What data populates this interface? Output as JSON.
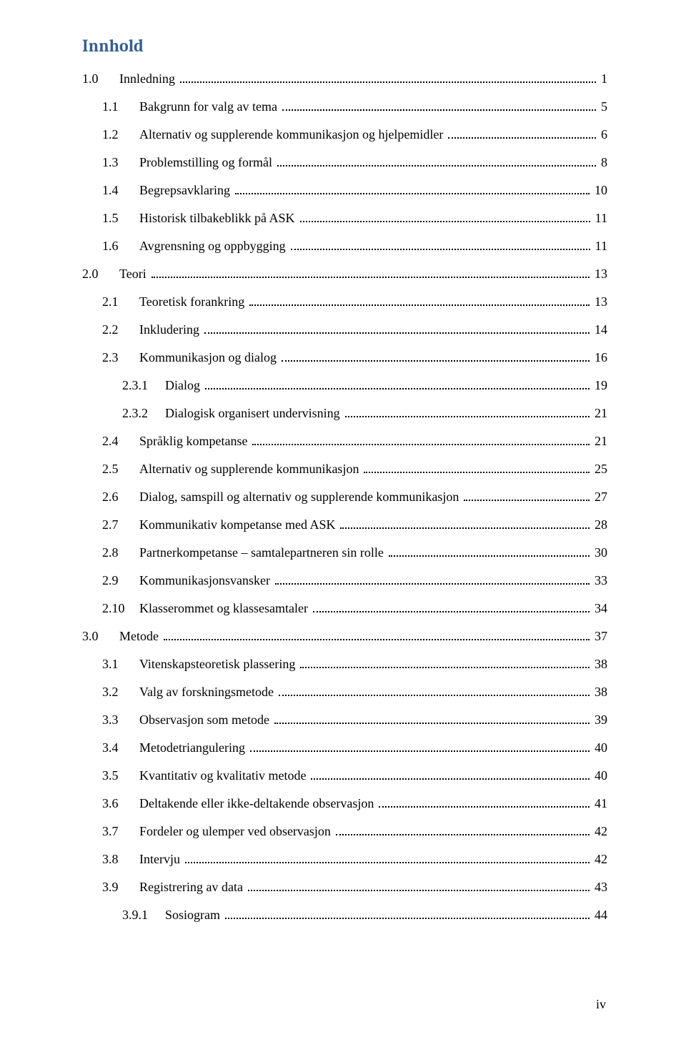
{
  "title": "Innhold",
  "page_label": "iv",
  "colors": {
    "title": "#365f91",
    "text": "#000000",
    "background": "#ffffff"
  },
  "typography": {
    "title_fontsize_pt": 18,
    "body_fontsize_pt": 13,
    "title_font": "Cambria",
    "body_font": "Times New Roman"
  },
  "toc": [
    {
      "level": 1,
      "num": "1.0",
      "text": "Innledning",
      "page": "1"
    },
    {
      "level": 2,
      "num": "1.1",
      "text": "Bakgrunn for valg av tema",
      "page": "5"
    },
    {
      "level": 2,
      "num": "1.2",
      "text": "Alternativ og supplerende kommunikasjon og hjelpemidler",
      "page": "6"
    },
    {
      "level": 2,
      "num": "1.3",
      "text": "Problemstilling og formål",
      "page": "8"
    },
    {
      "level": 2,
      "num": "1.4",
      "text": "Begrepsavklaring",
      "page": "10"
    },
    {
      "level": 2,
      "num": "1.5",
      "text": "Historisk tilbakeblikk på ASK",
      "page": "11"
    },
    {
      "level": 2,
      "num": "1.6",
      "text": "Avgrensning og oppbygging",
      "page": "11"
    },
    {
      "level": 1,
      "num": "2.0",
      "text": "Teori",
      "page": "13"
    },
    {
      "level": 2,
      "num": "2.1",
      "text": "Teoretisk forankring",
      "page": "13"
    },
    {
      "level": 2,
      "num": "2.2",
      "text": "Inkludering",
      "page": "14"
    },
    {
      "level": 2,
      "num": "2.3",
      "text": "Kommunikasjon og dialog",
      "page": "16"
    },
    {
      "level": 3,
      "num": "2.3.1",
      "text": "Dialog",
      "page": "19"
    },
    {
      "level": 3,
      "num": "2.3.2",
      "text": "Dialogisk organisert undervisning",
      "page": "21"
    },
    {
      "level": 2,
      "num": "2.4",
      "text": "Språklig kompetanse",
      "page": "21"
    },
    {
      "level": 2,
      "num": "2.5",
      "text": "Alternativ og supplerende kommunikasjon",
      "page": "25"
    },
    {
      "level": 2,
      "num": "2.6",
      "text": "Dialog, samspill og alternativ og supplerende kommunikasjon",
      "page": "27"
    },
    {
      "level": 2,
      "num": "2.7",
      "text": "Kommunikativ kompetanse med ASK",
      "page": "28"
    },
    {
      "level": 2,
      "num": "2.8",
      "text": "Partnerkompetanse – samtalepartneren sin rolle",
      "page": "30"
    },
    {
      "level": 2,
      "num": "2.9",
      "text": "Kommunikasjonsvansker",
      "page": "33"
    },
    {
      "level": 2,
      "num": "2.10",
      "text": "Klasserommet og klassesamtaler",
      "page": "34"
    },
    {
      "level": 1,
      "num": "3.0",
      "text": "Metode",
      "page": "37"
    },
    {
      "level": 2,
      "num": "3.1",
      "text": "Vitenskapsteoretisk plassering",
      "page": "38"
    },
    {
      "level": 2,
      "num": "3.2",
      "text": "Valg av forskningsmetode",
      "page": "38"
    },
    {
      "level": 2,
      "num": "3.3",
      "text": "Observasjon som metode",
      "page": "39"
    },
    {
      "level": 2,
      "num": "3.4",
      "text": "Metodetriangulering",
      "page": "40"
    },
    {
      "level": 2,
      "num": "3.5",
      "text": "Kvantitativ og kvalitativ metode",
      "page": "40"
    },
    {
      "level": 2,
      "num": "3.6",
      "text": "Deltakende eller ikke-deltakende observasjon",
      "page": "41"
    },
    {
      "level": 2,
      "num": "3.7",
      "text": "Fordeler og ulemper ved observasjon",
      "page": "42"
    },
    {
      "level": 2,
      "num": "3.8",
      "text": "Intervju",
      "page": "42"
    },
    {
      "level": 2,
      "num": "3.9",
      "text": "Registrering av data",
      "page": "43"
    },
    {
      "level": 3,
      "num": "3.9.1",
      "text": "Sosiogram",
      "page": "44"
    }
  ]
}
